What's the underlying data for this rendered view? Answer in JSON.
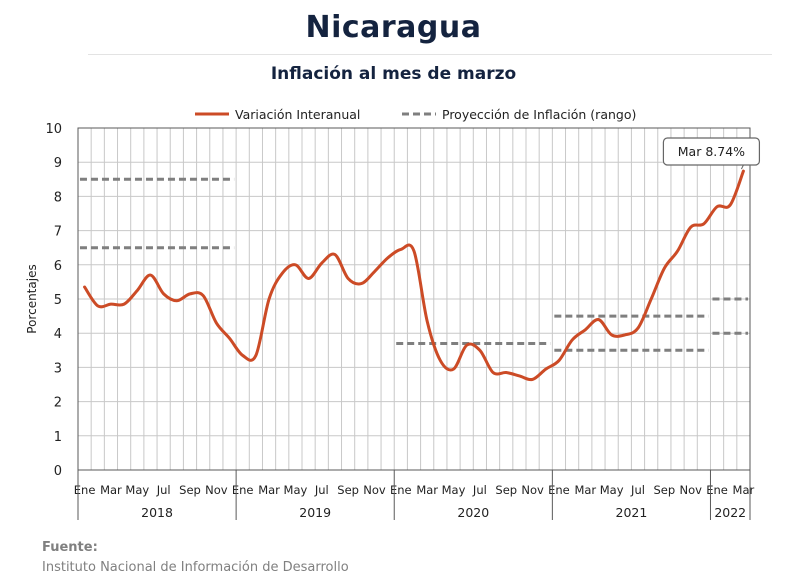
{
  "header": {
    "title": "Nicaragua",
    "subtitle": "Inflación al mes de marzo"
  },
  "footer": {
    "source_label": "Fuente:",
    "source_text": "Instituto Nacional de Información de  Desarrollo"
  },
  "colors": {
    "series_line": "#cc4b26",
    "projection": "#7f7f7f",
    "grid": "#c8c8c8",
    "axis": "#595959",
    "title": "#14233f"
  },
  "chart_data": {
    "type": "line",
    "title": "Inflación al mes de marzo",
    "xlabel": "",
    "ylabel": "Porcentajes",
    "ylim": [
      0,
      10
    ],
    "yticks": [
      0,
      1,
      2,
      3,
      4,
      5,
      6,
      7,
      8,
      9,
      10
    ],
    "grid": true,
    "legend_position": "top",
    "month_labels": [
      "Ene",
      "Mar",
      "May",
      "Jul",
      "Sep",
      "Nov"
    ],
    "year_labels": [
      "2018",
      "2019",
      "2020",
      "2021",
      "2022"
    ],
    "series": [
      {
        "name": "Variación Interanual",
        "style": "solid",
        "x": [
          "2018-01",
          "2018-02",
          "2018-03",
          "2018-04",
          "2018-05",
          "2018-06",
          "2018-07",
          "2018-08",
          "2018-09",
          "2018-10",
          "2018-11",
          "2018-12",
          "2019-01",
          "2019-02",
          "2019-03",
          "2019-04",
          "2019-05",
          "2019-06",
          "2019-07",
          "2019-08",
          "2019-09",
          "2019-10",
          "2019-11",
          "2019-12",
          "2020-01",
          "2020-02",
          "2020-03",
          "2020-04",
          "2020-05",
          "2020-06",
          "2020-07",
          "2020-08",
          "2020-09",
          "2020-10",
          "2020-11",
          "2020-12",
          "2021-01",
          "2021-02",
          "2021-03",
          "2021-04",
          "2021-05",
          "2021-06",
          "2021-07",
          "2021-08",
          "2021-09",
          "2021-10",
          "2021-11",
          "2021-12",
          "2022-01",
          "2022-02",
          "2022-03"
        ],
        "values": [
          5.35,
          4.8,
          4.85,
          4.85,
          5.25,
          5.7,
          5.15,
          4.95,
          5.15,
          5.1,
          4.3,
          3.85,
          3.35,
          3.35,
          5.0,
          5.75,
          6.0,
          5.6,
          6.05,
          6.3,
          5.6,
          5.45,
          5.8,
          6.2,
          6.45,
          6.4,
          4.35,
          3.2,
          2.95,
          3.65,
          3.5,
          2.85,
          2.85,
          2.75,
          2.65,
          2.95,
          3.2,
          3.8,
          4.1,
          4.4,
          3.95,
          3.95,
          4.15,
          5.0,
          5.9,
          6.4,
          7.1,
          7.2,
          7.7,
          7.75,
          8.74
        ]
      },
      {
        "name": "Proyección de Inflación (rango)",
        "style": "dashed",
        "ranges": [
          {
            "start": "2018-01",
            "end": "2018-12",
            "low": 6.5,
            "high": 8.5
          },
          {
            "start": "2020-01",
            "end": "2020-12",
            "low": 3.7,
            "high": 3.7
          },
          {
            "start": "2021-01",
            "end": "2021-12",
            "low": 3.5,
            "high": 4.5
          },
          {
            "start": "2022-01",
            "end": "2022-03",
            "low": 4.0,
            "high": 5.0
          }
        ]
      }
    ],
    "annotations": [
      {
        "x": "2022-03",
        "y": 8.74,
        "text": "Mar 8.74%"
      }
    ]
  }
}
